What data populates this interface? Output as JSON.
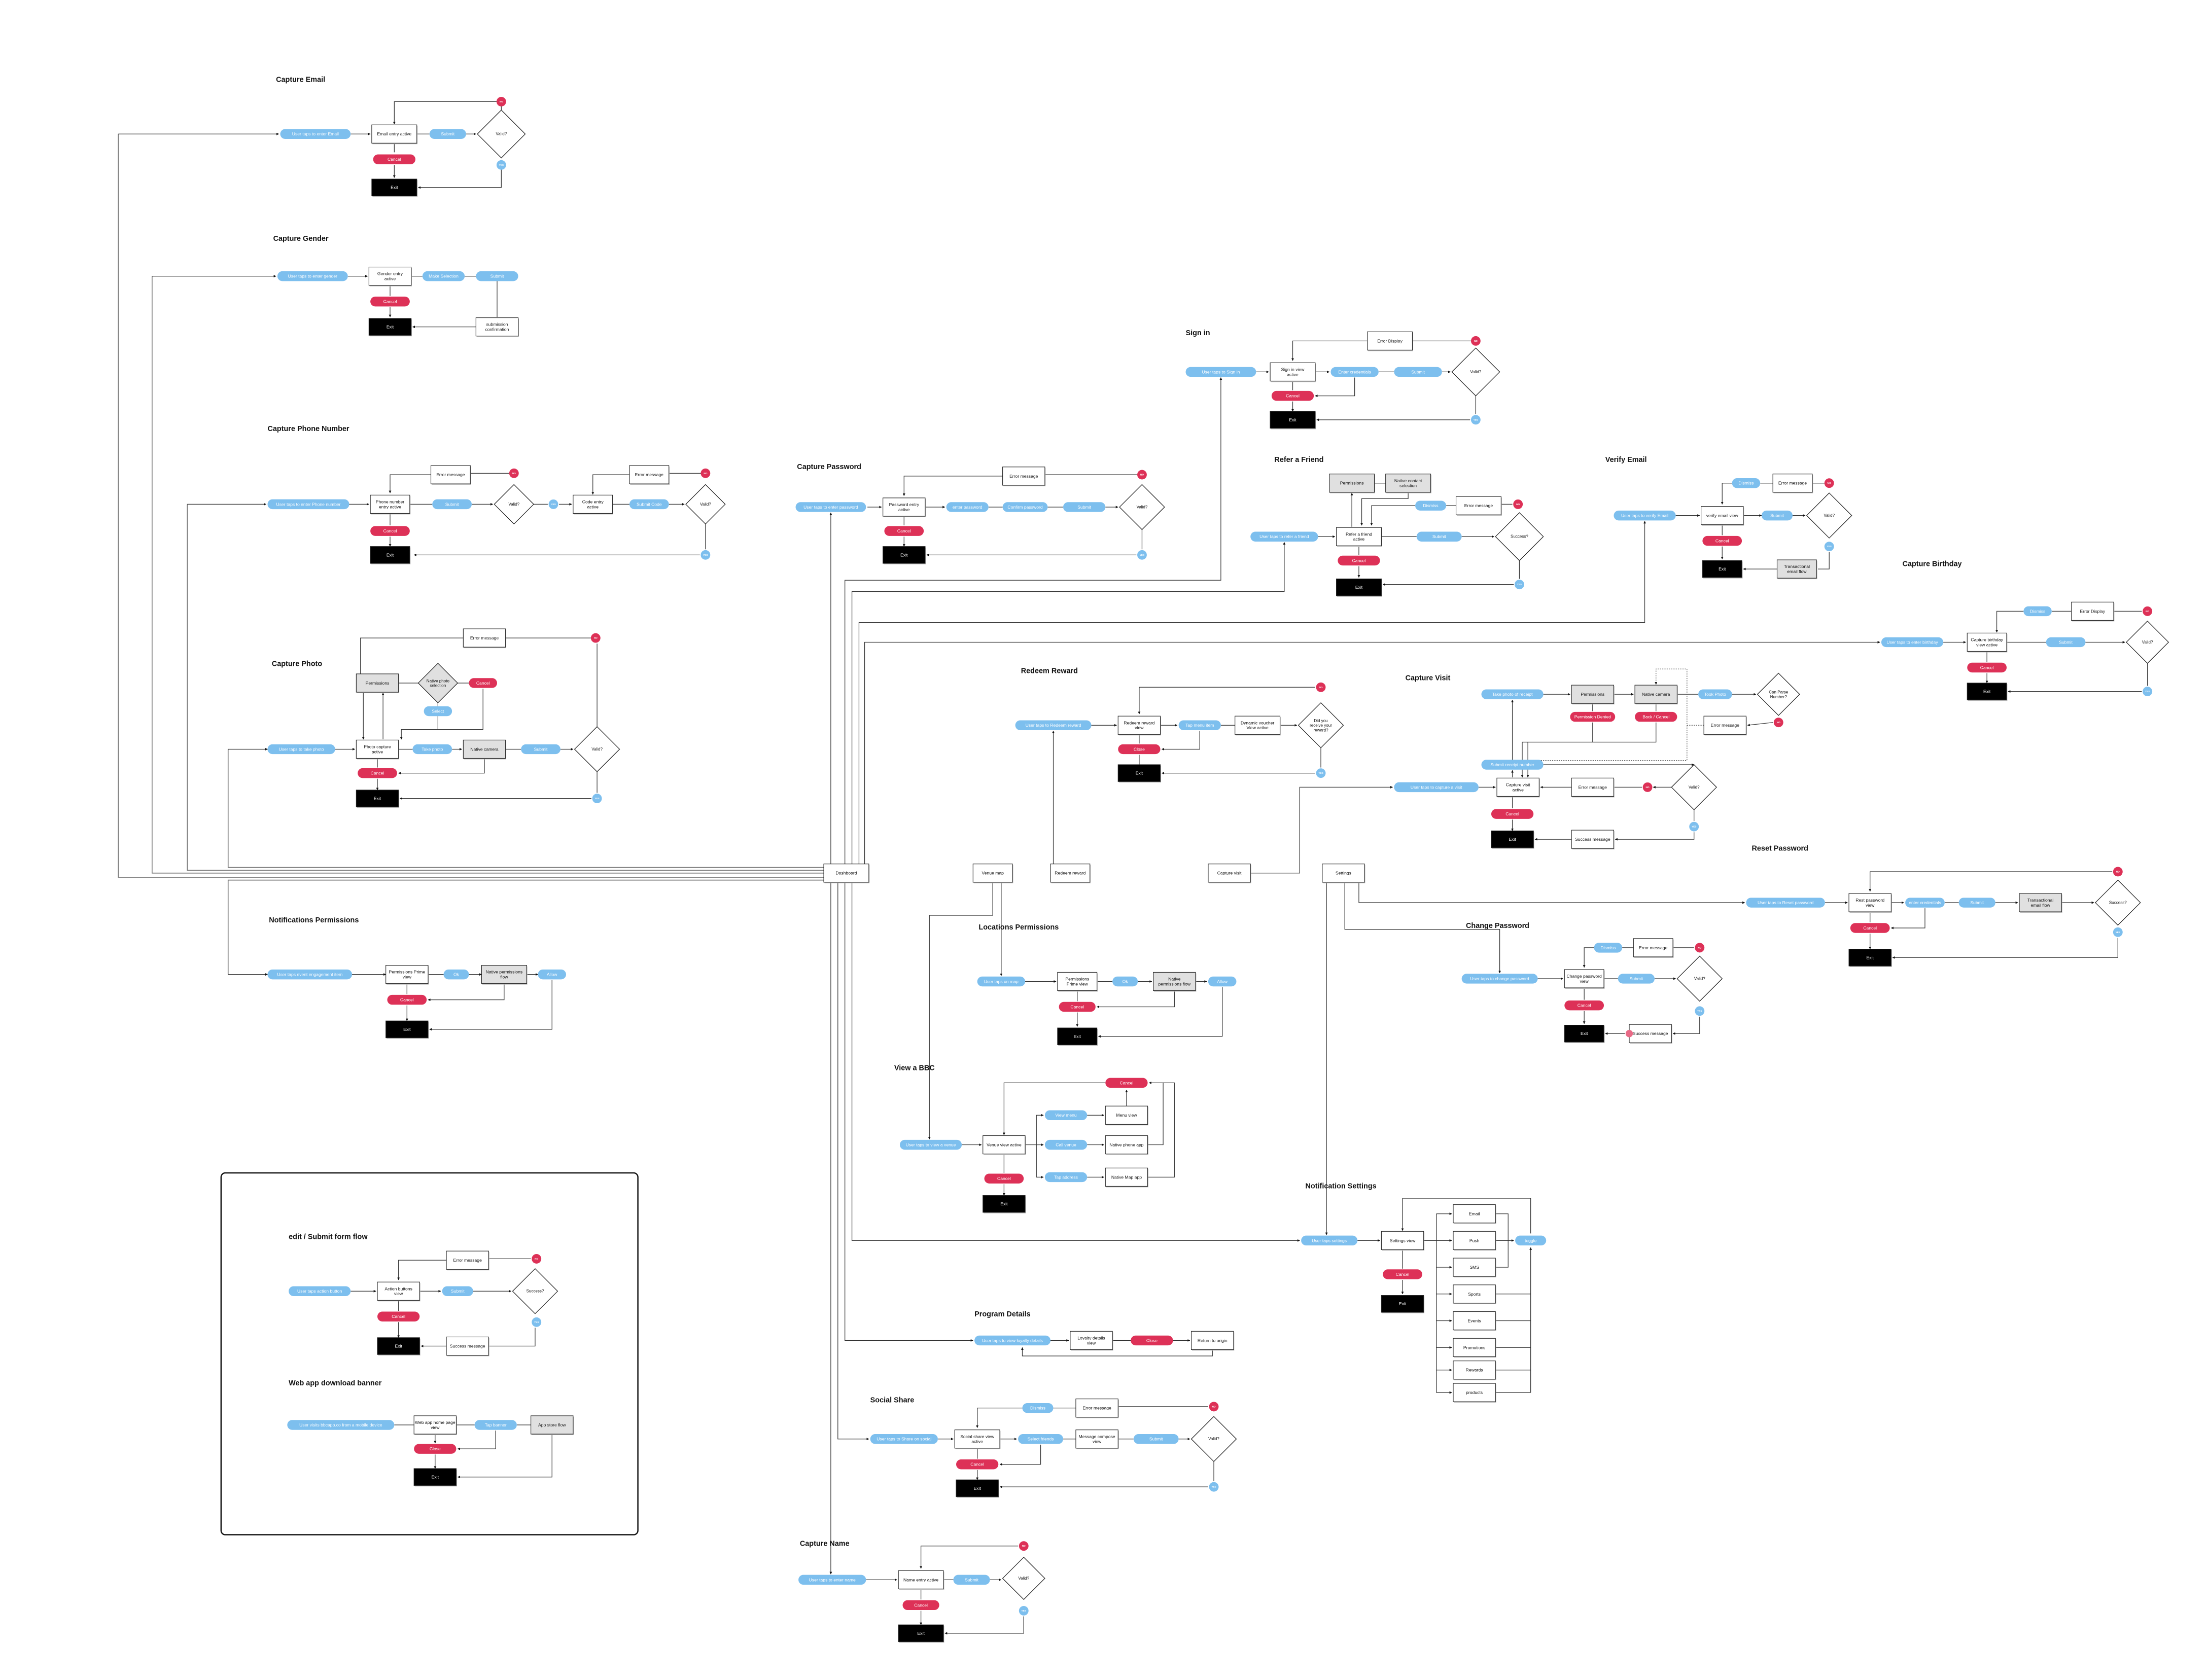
{
  "colors": {
    "action": "#7dbfee",
    "cancel": "#dd3157",
    "exit": "#000000",
    "system": "#e0e0e0",
    "box": "#ffffff"
  },
  "labels": {
    "no": "NO",
    "yes": "YES"
  },
  "flows": {
    "email": {
      "title": "Capture Email",
      "nodes": [
        "User taps to enter Email",
        "Email entry active",
        "Submit",
        "Valid?",
        "Cancel",
        "Exit"
      ]
    },
    "gender": {
      "title": "Capture Gender",
      "nodes": [
        "User taps to enter gender",
        "Gender entry active",
        "Make Selection",
        "Submit",
        "Cancel",
        "Exit",
        "submission confirmation"
      ]
    },
    "phone": {
      "title": "Capture Phone Number",
      "nodes": [
        "User taps to enter Phone number",
        "Phone number entry active",
        "Submit",
        "Valid?",
        "Error message",
        "Code entry active",
        "Submit Code",
        "Valid?",
        "Error message",
        "Cancel",
        "Exit"
      ]
    },
    "photo": {
      "title": "Capture Photo",
      "nodes": [
        "Error message",
        "Permissions",
        "Native photo selection",
        "Cancel",
        "Select",
        "User taps to take photo",
        "Photo capture active",
        "Take photo",
        "Native camera",
        "Submit",
        "Valid?",
        "Cancel",
        "Exit"
      ]
    },
    "notif": {
      "title": "Notifications Permissions",
      "nodes": [
        "User taps event engagement item",
        "Permissions Prime view",
        "Ok",
        "Native permissions flow",
        "Allow",
        "Cancel",
        "Exit"
      ]
    },
    "hub": {
      "title": "",
      "nodes": [
        "Dashboard",
        "Venue map",
        "Redeem reward",
        "Capture visit",
        "Settings"
      ]
    },
    "password": {
      "title": "Capture Password",
      "nodes": [
        "User taps to enter password",
        "Password entry active",
        "enter password",
        "Confirm password",
        "Submit",
        "Valid?",
        "Error message",
        "Cancel",
        "Exit"
      ]
    },
    "signin": {
      "title": "Sign in",
      "nodes": [
        "User taps to Sign in",
        "Sign in view active",
        "Enter credentials",
        "Submit",
        "Valid?",
        "Error Display",
        "Cancel",
        "Exit"
      ]
    },
    "refer": {
      "title": "Refer a Friend",
      "nodes": [
        "Permissions",
        "Native contact selection",
        "Dismiss",
        "Error message",
        "User taps to refer a friend",
        "Refer a friend active",
        "Submit",
        "Success?",
        "Cancel",
        "Exit"
      ]
    },
    "verify": {
      "title": "Verify Email",
      "nodes": [
        "Dismiss",
        "Error message",
        "User taps to verify Email",
        "verify email view",
        "Submit",
        "Valid?",
        "Cancel",
        "Exit",
        "Transactional email flow"
      ]
    },
    "birthday": {
      "title": "Capture Birthday",
      "nodes": [
        "Dismiss",
        "Error Display",
        "User taps to enter birthday",
        "Capture birthday view active",
        "Submit",
        "Valid?",
        "Cancel",
        "Exit"
      ]
    },
    "redeem": {
      "title": "Redeem Reward",
      "nodes": [
        "User taps to Redeem reward",
        "Redeem reward view",
        "Tap menu item",
        "Dynamic voucher View active",
        "Did you receive your reward?",
        "Close",
        "Exit"
      ]
    },
    "visit": {
      "title": "Capture Visit",
      "nodes": [
        "Take photo of receipt",
        "Permissions",
        "Native camera",
        "Took Photo",
        "Can Parse Number?",
        "Permission Denied",
        "Back / Cancel",
        "Error message",
        "Submit receipt number",
        "User taps to capture a visit",
        "Capture visit active",
        "Error message",
        "Valid?",
        "Cancel",
        "Exit",
        "Success message"
      ]
    },
    "reset": {
      "title": "Reset Password",
      "nodes": [
        "User taps to Reset password",
        "Rest password view",
        "enter credentials",
        "Submit",
        "Transactional email flow",
        "Success?",
        "Cancel",
        "Exit"
      ]
    },
    "change": {
      "title": "Change Password",
      "nodes": [
        "User taps to change password",
        "Change password view",
        "Submit",
        "Valid?",
        "Dismiss",
        "Error message",
        "Cancel",
        "Exit",
        "Success message"
      ]
    },
    "location": {
      "title": "Locations Permissions",
      "nodes": [
        "User taps on map",
        "Permissions Prime view",
        "Ok",
        "Native permissions flow",
        "Allow",
        "Cancel",
        "Exit"
      ]
    },
    "bbc": {
      "title": "View a BBC",
      "nodes": [
        "Cancel",
        "View menu",
        "Menu view",
        "User taps to view a venue",
        "Venue view active",
        "Call venue",
        "Native phone app",
        "Tap address",
        "Native Map app",
        "Cancel",
        "Exit"
      ]
    },
    "settings": {
      "title": "Notification Settings",
      "nodes": [
        "User taps settings",
        "Settings view",
        "Cancel",
        "Exit",
        "Email",
        "Push",
        "SMS",
        "Sports",
        "Events",
        "Promotions",
        "Rewards",
        "products",
        "toggle"
      ]
    },
    "program": {
      "title": "Program Details",
      "nodes": [
        "User taps to view loyalty details",
        "Loyalty details view",
        "Close",
        "Return to origin"
      ]
    },
    "social": {
      "title": "Social Share",
      "nodes": [
        "Dismiss",
        "Error message",
        "User taps to Share on social",
        "Social share view active",
        "Select friends",
        "Message compose view",
        "Submit",
        "Valid?",
        "Cancel",
        "Exit"
      ]
    },
    "name": {
      "title": "Capture Name",
      "nodes": [
        "User taps to enter name",
        "Name entry active",
        "Submit",
        "Valid?",
        "Cancel",
        "Exit"
      ]
    },
    "formflow": {
      "title": "edit / Submit form flow",
      "nodes": [
        "User taps action button",
        "Action buttons view",
        "Submit",
        "Success?",
        "Error message",
        "Cancel",
        "Exit",
        "Success message"
      ]
    },
    "banner": {
      "title": "Web app download banner",
      "nodes": [
        "User visits bbcapp.co from a mobile device",
        "Web app home page view",
        "Tap banner",
        "App store flow",
        "Close",
        "Exit"
      ]
    }
  }
}
